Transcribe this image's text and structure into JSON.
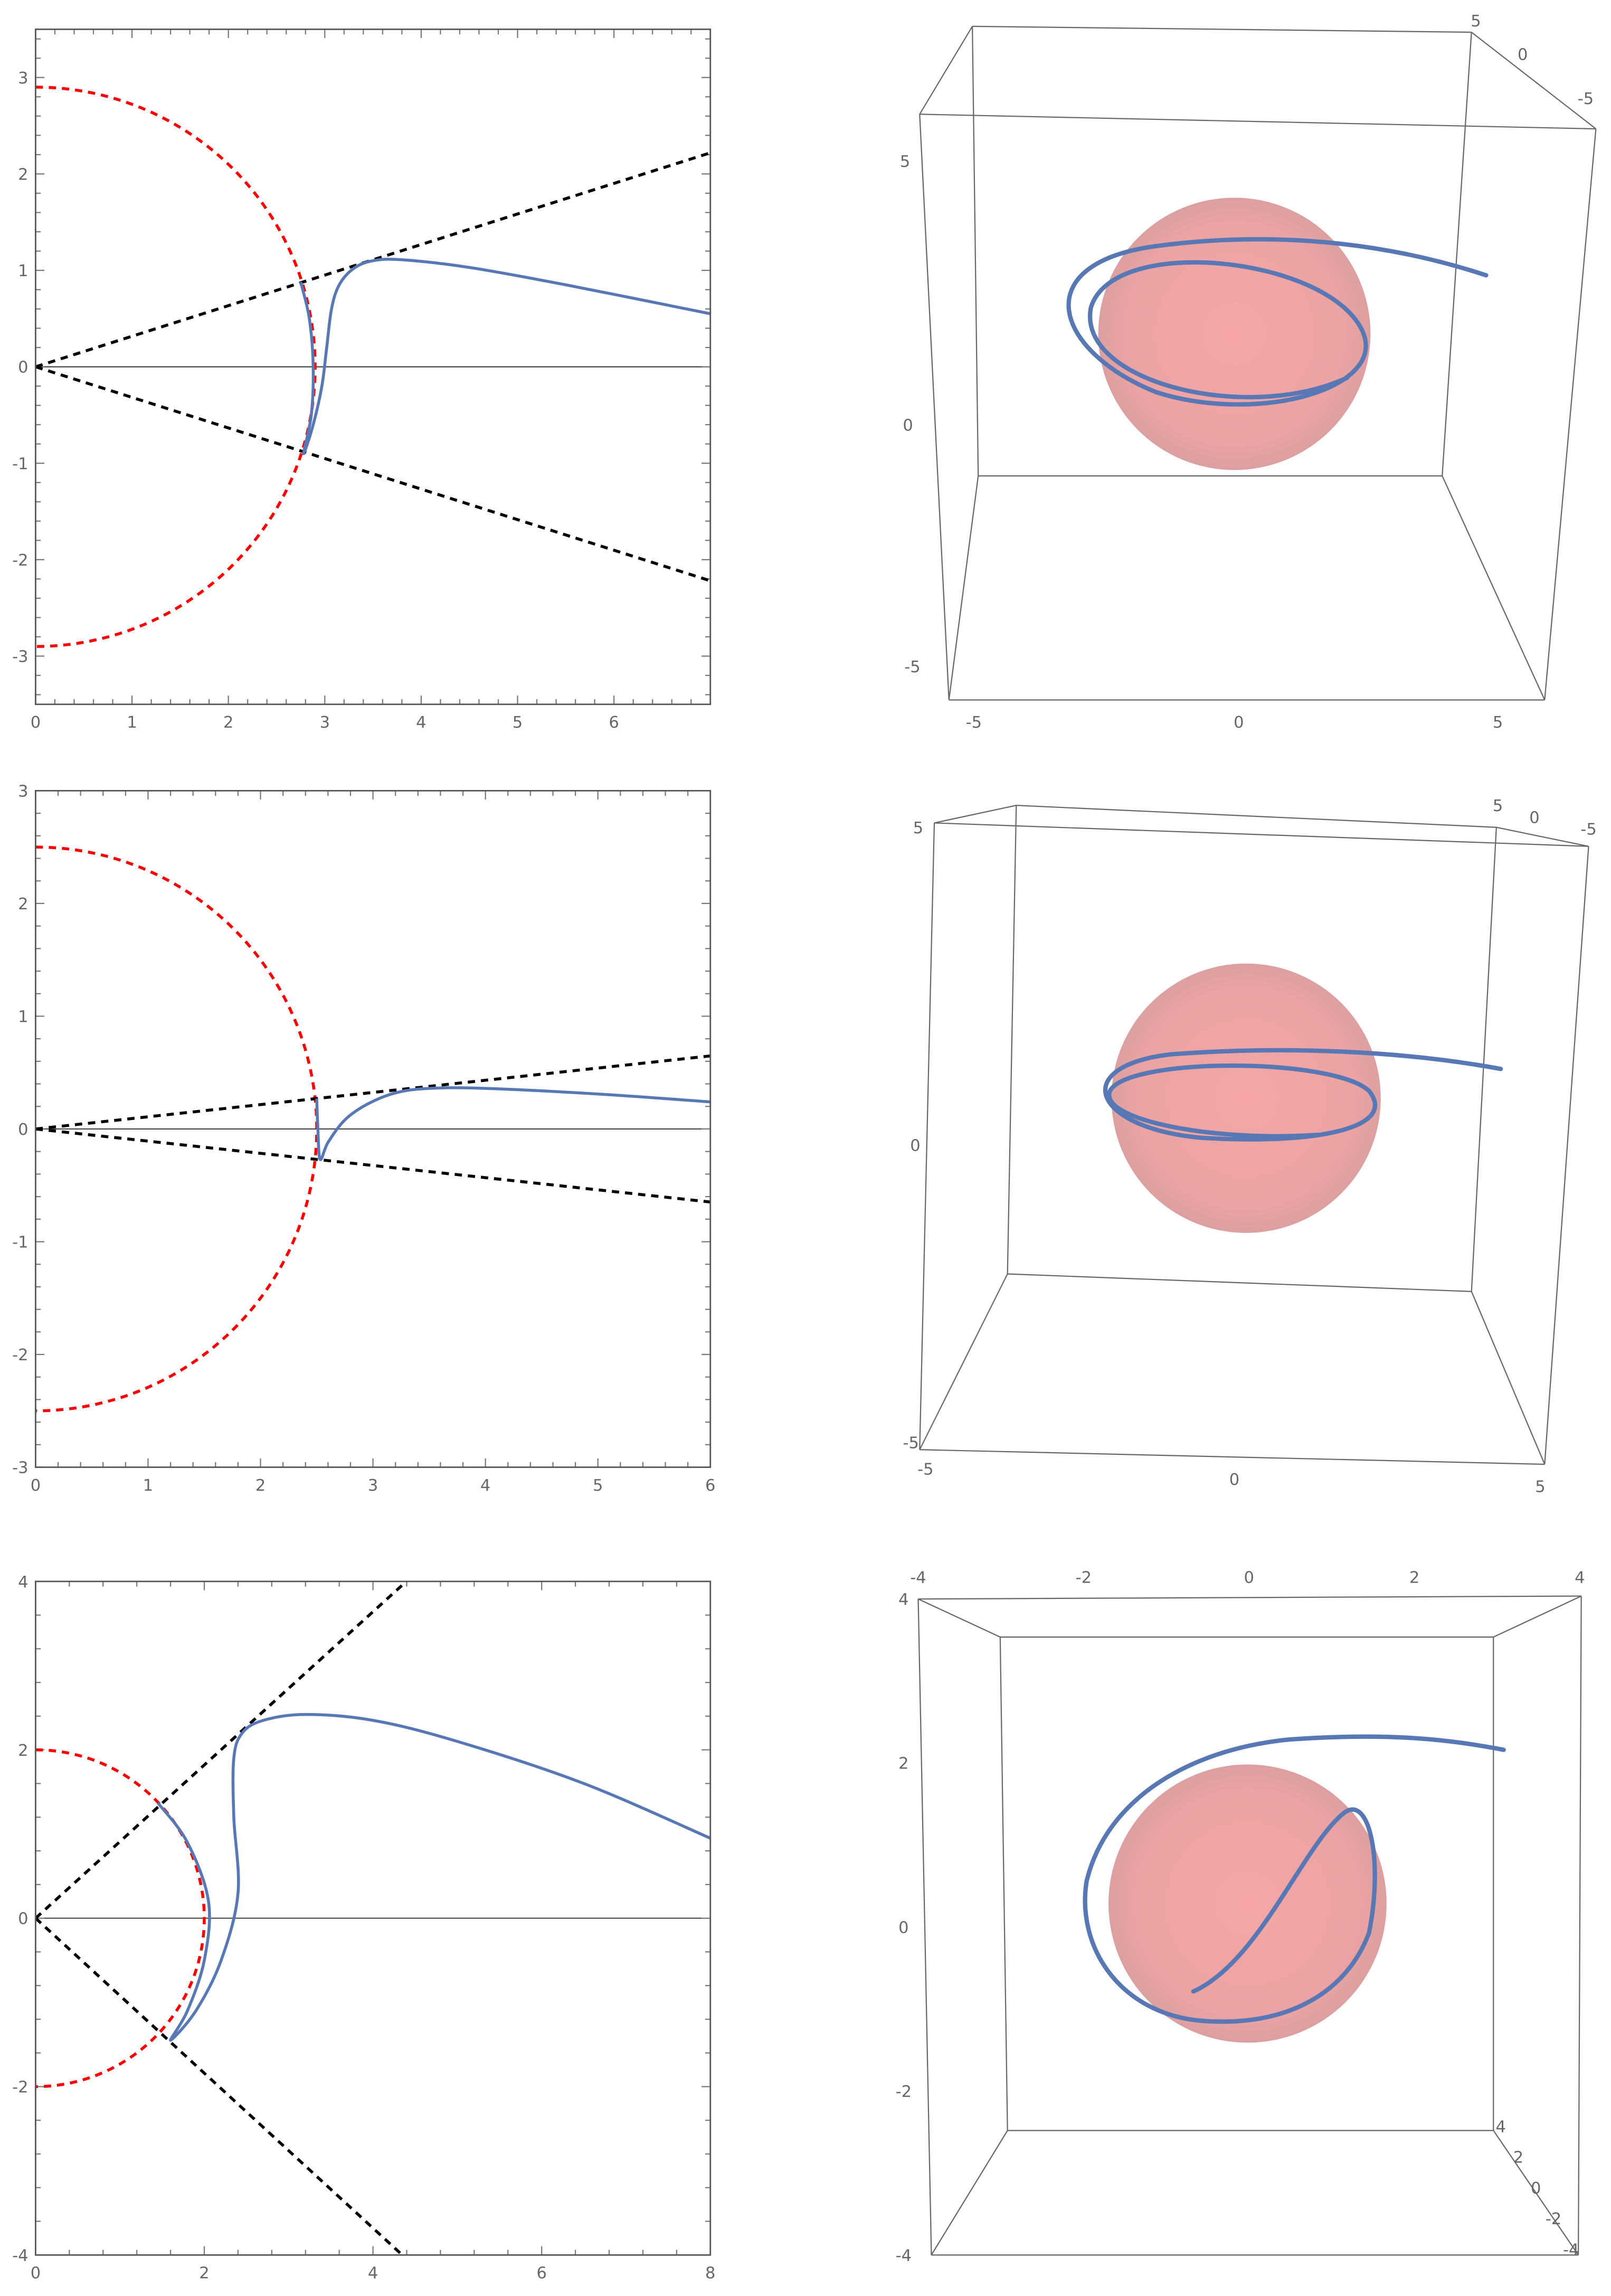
{
  "colors": {
    "curve": "#5778b4",
    "circle": "#ff0000",
    "rays": "#000000",
    "frame": "#555555",
    "sphere": "#f08a8a"
  },
  "chart_data": [
    {
      "type": "line",
      "xlim": [
        0,
        7
      ],
      "ylim": [
        -3.5,
        3.5
      ],
      "xticks": [
        "0",
        "1",
        "2",
        "3",
        "4",
        "5",
        "6"
      ],
      "xtick_values": [
        0,
        1,
        2,
        3,
        4,
        5,
        6
      ],
      "yticks": [
        "-3",
        "-2",
        "-1",
        "0",
        "1",
        "2",
        "3"
      ],
      "ytick_values": [
        -3,
        -2,
        -1,
        0,
        1,
        2,
        3
      ],
      "circle_radius": 2.9,
      "ray_slopes": [
        0.317,
        -0.317
      ],
      "curve": [
        [
          2.75,
          0.88
        ],
        [
          2.84,
          0.5
        ],
        [
          2.88,
          0
        ],
        [
          2.86,
          -0.5
        ],
        [
          2.78,
          -0.9
        ],
        [
          2.88,
          -0.6
        ],
        [
          2.97,
          -0.2
        ],
        [
          3.02,
          0.2
        ],
        [
          3.07,
          0.6
        ],
        [
          3.15,
          0.85
        ],
        [
          3.3,
          1.02
        ],
        [
          3.5,
          1.1
        ],
        [
          3.8,
          1.11
        ],
        [
          4.5,
          1.03
        ],
        [
          5.5,
          0.85
        ],
        [
          7,
          0.55
        ]
      ]
    },
    {
      "type": "3d-parametric",
      "axes": {
        "vertical": [
          "5",
          "0",
          "-5"
        ],
        "bottom": [
          "-5",
          "0",
          "5"
        ],
        "depth": [
          "5",
          "0",
          "-5"
        ]
      },
      "range": [
        -6,
        6
      ],
      "sphere_radius": 2.9
    },
    {
      "type": "line",
      "xlim": [
        0,
        6
      ],
      "ylim": [
        -3,
        3
      ],
      "xticks": [
        "0",
        "1",
        "2",
        "3",
        "4",
        "5",
        "6"
      ],
      "xtick_values": [
        0,
        1,
        2,
        3,
        4,
        5,
        6
      ],
      "yticks": [
        "-3",
        "-2",
        "-1",
        "0",
        "1",
        "2",
        "3"
      ],
      "ytick_values": [
        -3,
        -2,
        -1,
        0,
        1,
        2,
        3
      ],
      "circle_radius": 2.5,
      "ray_slopes": [
        0.108,
        -0.108
      ],
      "curve": [
        [
          2.5,
          0.27
        ],
        [
          2.51,
          0
        ],
        [
          2.53,
          -0.27
        ],
        [
          2.6,
          -0.12
        ],
        [
          2.75,
          0.08
        ],
        [
          2.95,
          0.22
        ],
        [
          3.2,
          0.32
        ],
        [
          3.5,
          0.36
        ],
        [
          4,
          0.36
        ],
        [
          5,
          0.31
        ],
        [
          6,
          0.24
        ]
      ]
    },
    {
      "type": "3d-parametric",
      "axes": {
        "vertical": [
          "5",
          "0",
          "-5"
        ],
        "bottom": [
          "-5",
          "0",
          "5"
        ],
        "depth": [
          "5",
          "0",
          "-5"
        ]
      },
      "range": [
        -5,
        5
      ],
      "sphere_radius": 2.5
    },
    {
      "type": "line",
      "xlim": [
        0,
        8
      ],
      "ylim": [
        -4,
        4
      ],
      "xticks": [
        "0",
        "2",
        "4",
        "6",
        "8"
      ],
      "xtick_values": [
        0,
        2,
        4,
        6,
        8
      ],
      "yticks": [
        "-4",
        "-2",
        "0",
        "2",
        "4"
      ],
      "ytick_values": [
        -4,
        -2,
        0,
        2,
        4
      ],
      "circle_radius": 2.0,
      "ray_slopes": [
        0.91,
        -0.92
      ],
      "curve": [
        [
          1.45,
          1.37
        ],
        [
          1.8,
          0.9
        ],
        [
          2.05,
          0.2
        ],
        [
          2.0,
          -0.5
        ],
        [
          1.8,
          -1.1
        ],
        [
          1.6,
          -1.45
        ],
        [
          1.9,
          -1.1
        ],
        [
          2.2,
          -0.5
        ],
        [
          2.4,
          0.3
        ],
        [
          2.35,
          1.2
        ],
        [
          2.35,
          1.9
        ],
        [
          2.45,
          2.2
        ],
        [
          2.7,
          2.35
        ],
        [
          3.2,
          2.42
        ],
        [
          4,
          2.35
        ],
        [
          5,
          2.1
        ],
        [
          6.5,
          1.6
        ],
        [
          8,
          0.95
        ]
      ]
    },
    {
      "type": "3d-parametric",
      "axes": {
        "top": [
          "-4",
          "-2",
          "0",
          "2",
          "4"
        ],
        "vertical": [
          "4",
          "2",
          "0",
          "-2",
          "-4"
        ],
        "depth": [
          "4",
          "2",
          "0",
          "-2",
          "-4"
        ]
      },
      "range": [
        -4,
        4
      ],
      "sphere_radius": 2.0
    }
  ]
}
